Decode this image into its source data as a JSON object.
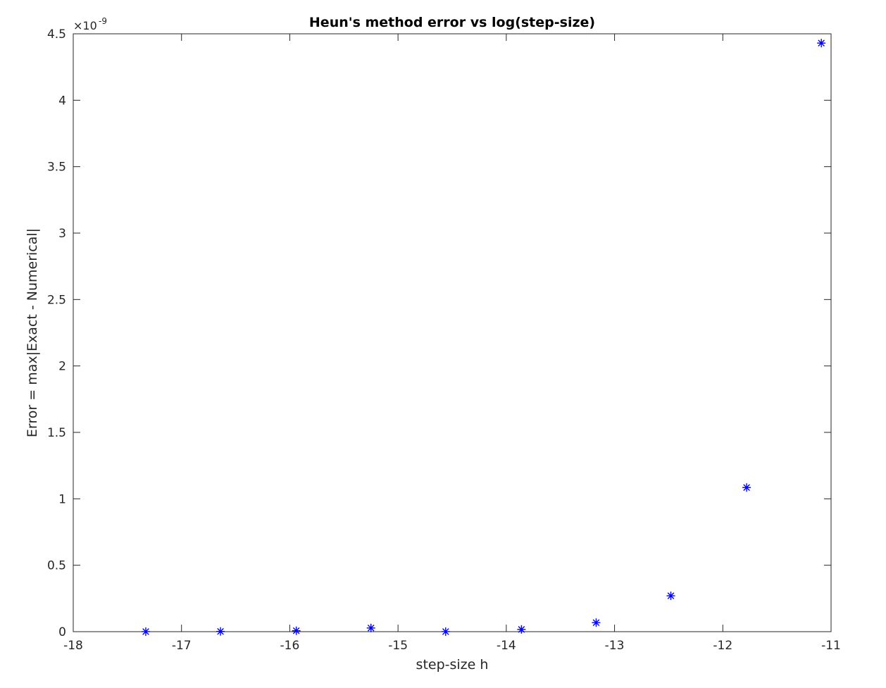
{
  "chart_data": {
    "type": "scatter",
    "title": "Heun's method error vs log(step-size)",
    "xlabel": "step-size h",
    "ylabel": "Error = max|Exact - Numerical|",
    "xlim": [
      -18,
      -11
    ],
    "ylim": [
      0,
      4.5
    ],
    "y_exponent_label": "×10^-9",
    "y_exponent_base": "×10",
    "y_exponent_power": "-9",
    "xticks": [
      -18,
      -17,
      -16,
      -15,
      -14,
      -13,
      -12,
      -11
    ],
    "yticks": [
      0,
      0.5,
      1,
      1.5,
      2,
      2.5,
      3,
      3.5,
      4,
      4.5
    ],
    "xtick_labels": [
      "-18",
      "-17",
      "-16",
      "-15",
      "-14",
      "-13",
      "-12",
      "-11"
    ],
    "ytick_labels": [
      "0",
      "0.5",
      "1",
      "1.5",
      "2",
      "2.5",
      "3",
      "3.5",
      "4",
      "4.5"
    ],
    "marker": "asterisk",
    "marker_color": "#0000ff",
    "grid": false,
    "box": true,
    "series": [
      {
        "x": [
          -17.33,
          -16.64,
          -15.94,
          -15.25,
          -14.56,
          -13.86,
          -13.17,
          -12.48,
          -11.78,
          -11.09
        ],
        "y": [
          0.00043,
          0.0017,
          0.0069,
          0.0276,
          0.0005,
          0.017,
          0.068,
          0.27,
          1.085,
          4.43
        ]
      }
    ]
  }
}
